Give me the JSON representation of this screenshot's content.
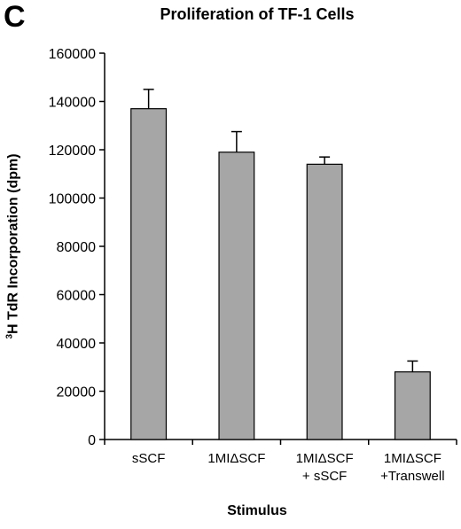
{
  "panel_letter": "C",
  "chart_data": {
    "type": "bar",
    "title": "Proliferation of TF-1 Cells",
    "xlabel": "Stimulus",
    "ylabel": {
      "sup": "3",
      "text": "H TdR Incorporation (dpm)"
    },
    "categories": [
      [
        "sSCF"
      ],
      [
        "1MIΔSCF"
      ],
      [
        "1MIΔSCF",
        "+ sSCF"
      ],
      [
        "1MIΔSCF",
        "+Transwell"
      ]
    ],
    "values": [
      137000,
      119000,
      114000,
      28000
    ],
    "errors": [
      8000,
      8500,
      3000,
      4500
    ],
    "ylim": [
      0,
      160000
    ],
    "yticks": [
      0,
      20000,
      40000,
      60000,
      80000,
      100000,
      120000,
      140000,
      160000
    ],
    "bar_color": "#a6a6a6",
    "grid": false,
    "legend": "none"
  }
}
